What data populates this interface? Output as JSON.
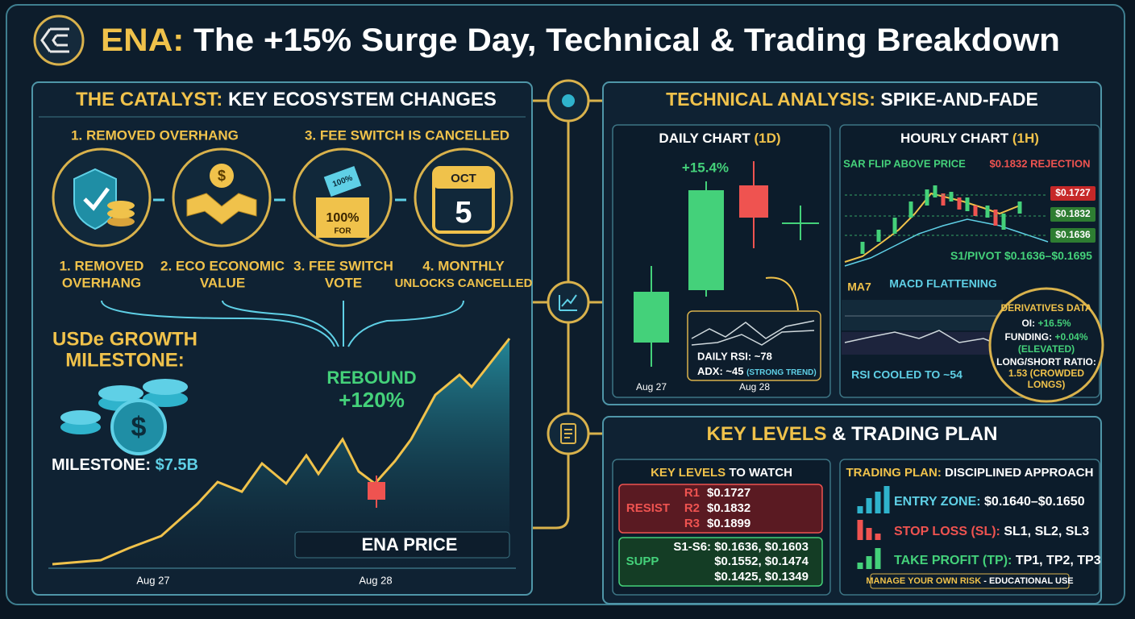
{
  "header": {
    "title_highlight": "ENA:",
    "title": "The +15% Surge Day, Technical & Trading Breakdown"
  },
  "catalyst": {
    "title_highlight": "THE CATALYST:",
    "title": "KEY ECOSYSTEM CHANGES",
    "top_labels": [
      "1. REMOVED OVERHANG",
      "3. FEE SWITCH IS CANCELLED"
    ],
    "icons": {
      "coin": "$",
      "ticket": "100%",
      "box_value": "100%",
      "box_sub": "FOR",
      "month": "OCT",
      "day": "5"
    },
    "items": [
      {
        "line1": "1. REMOVED",
        "line2": "OVERHANG"
      },
      {
        "line1": "2. ECO ECONOMIC",
        "line2": "VALUE"
      },
      {
        "line1": "3. FEE SWITCH",
        "line2": "VOTE"
      },
      {
        "line1": "4. MONTHLY",
        "line2": "UNLOCKS CANCELLED"
      }
    ],
    "usde": {
      "title_line1": "USDe GROWTH",
      "title_line2": "MILESTONE:",
      "coin": "$",
      "milestone_label": "MILESTONE:",
      "milestone_value": "$7.5B"
    },
    "rebound": {
      "label": "REBOUND",
      "value": "+120%"
    },
    "price_label": "ENA PRICE",
    "x_labels": [
      "Aug 27",
      "Aug 28"
    ]
  },
  "technical": {
    "title_highlight": "TECHNICAL ANALYSIS:",
    "title": "SPIKE-AND-FADE",
    "daily": {
      "title": "DAILY CHART",
      "timeframe": "(1D)",
      "change": "+15.4%",
      "rsi": "DAILY RSI: ~78",
      "adx": "ADX: ~45",
      "adx_note": "(STRONG TREND)",
      "x_labels": [
        "Aug 27",
        "Aug 28"
      ]
    },
    "hourly": {
      "title": "HOURLY CHART",
      "timeframe": "(1H)",
      "sar": "SAR FLIP ABOVE PRICE",
      "rejection": "$0.1832 REJECTION",
      "price_tags": [
        "$0.1727",
        "$0.1832",
        "$0.1636"
      ],
      "s1_label": "S1/PIVOT",
      "s1_value": "$0.1636–$0.1695",
      "ma": "MA7",
      "macd": "MACD FLATTENING",
      "rsi": "RSI COOLED TO ~54",
      "derivatives": {
        "title": "DERIVATIVES DATA",
        "oi_label": "OI:",
        "oi": "+16.5%",
        "funding_label": "FUNDING:",
        "funding": "+0.04%",
        "funding_note": "(ELEVATED)",
        "ratio_label": "LONG/SHORT RATIO:",
        "ratio_line1": "1.53 (CROWDED",
        "ratio_line2": "LONGS)"
      }
    }
  },
  "plan": {
    "title_highlight": "KEY LEVELS",
    "title": "& TRADING PLAN",
    "levels": {
      "title_highlight": "KEY LEVELS",
      "title": "TO WATCH",
      "resist_label": "RESIST",
      "resist": [
        {
          "name": "R1",
          "value": "$0.1727"
        },
        {
          "name": "R2",
          "value": "$0.1832"
        },
        {
          "name": "R3",
          "value": "$0.1899"
        }
      ],
      "supp_label": "SUPP",
      "supp_lines": [
        "S1-S6: $0.1636, $0.1603",
        "$0.1552, $0.1474",
        "$0.1425, $0.1349"
      ]
    },
    "trading": {
      "title_highlight": "TRADING PLAN:",
      "title": "DISCIPLINED APPROACH",
      "entry_label": "ENTRY ZONE:",
      "entry": "$0.1640–$0.1650",
      "stop_label": "STOP LOSS (SL):",
      "stop": "SL1, SL2, SL3",
      "tp_label": "TAKE PROFIT (TP):",
      "tp": "TP1, TP2, TP3",
      "footer_highlight": "MANAGE YOUR OWN RISK",
      "footer": "- EDUCATIONAL USE"
    }
  }
}
